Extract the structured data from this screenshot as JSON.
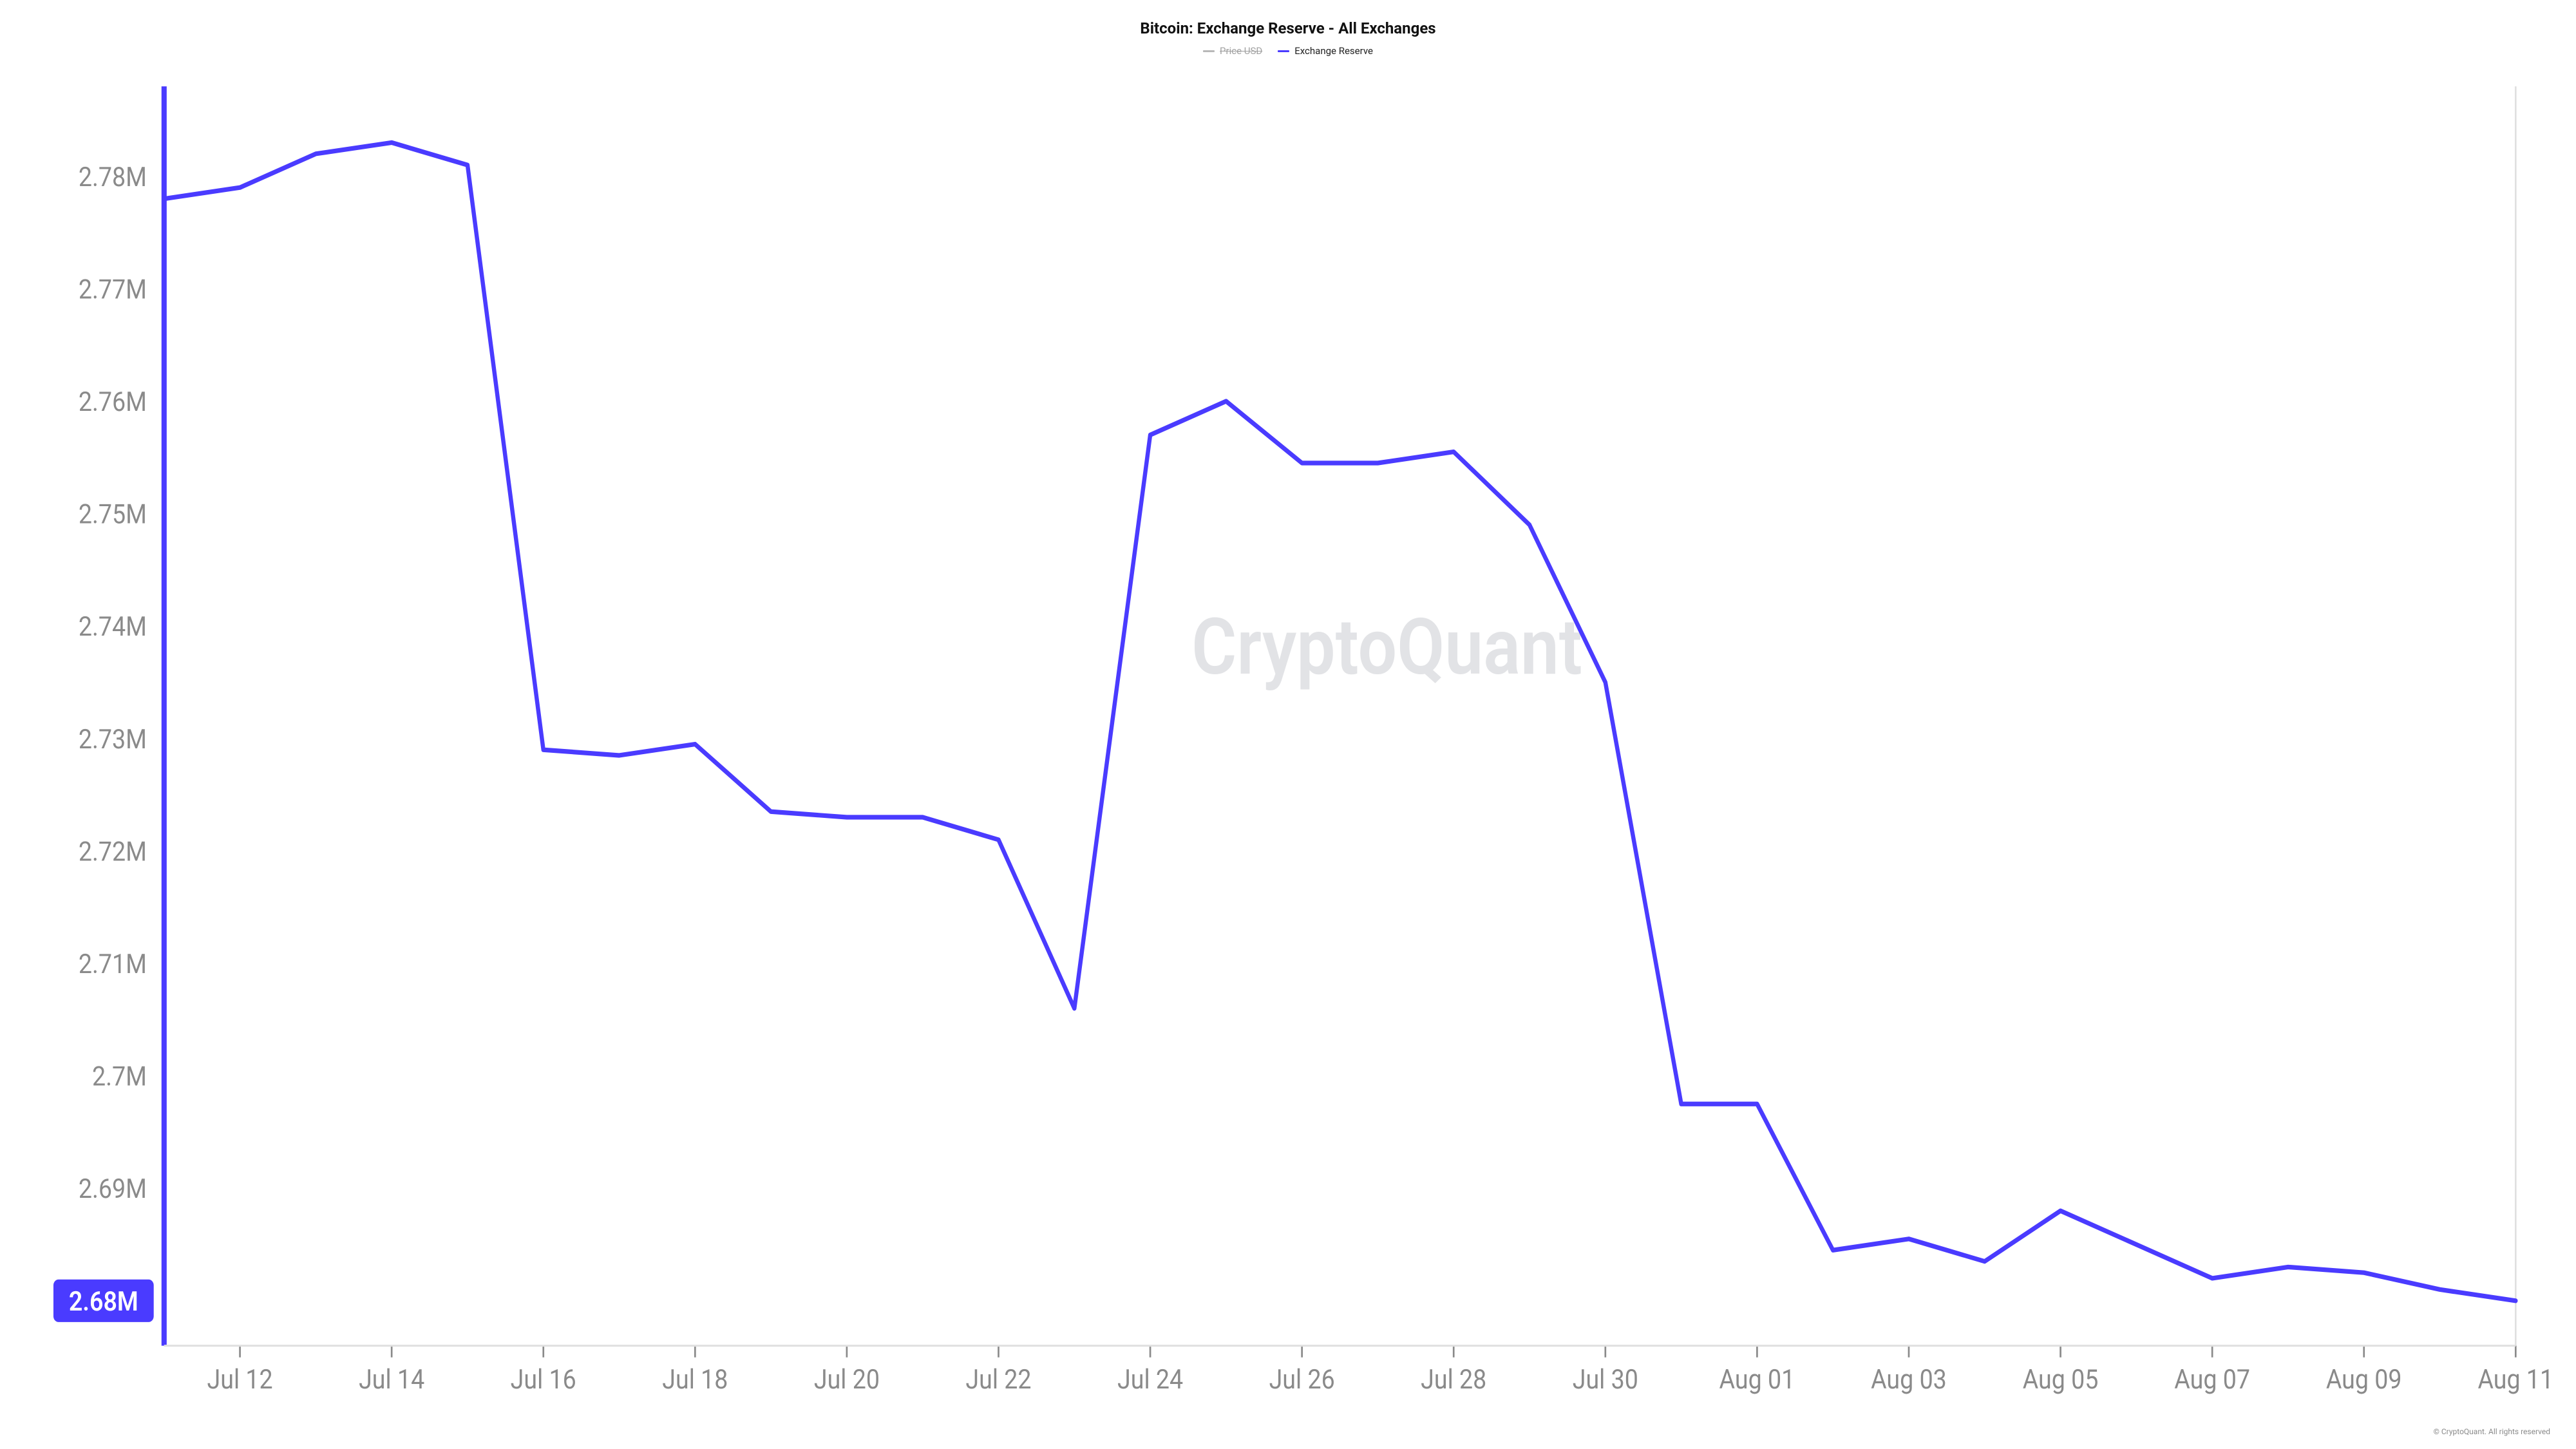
{
  "chart": {
    "type": "line",
    "title": "Bitcoin: Exchange Reserve - All Exchanges",
    "watermark": "CryptoQuant",
    "copyright": "© CryptoQuant. All rights reserved",
    "background_color": "#ffffff",
    "title_fontsize": 24,
    "axis_label_fontsize": 14,
    "axis_label_color": "#8a8a8a",
    "plot_border_color": "#e0e0e0",
    "y_axis_line_color": "#4a3bff",
    "y_axis_line_width": 3,
    "legend": [
      {
        "label": "Price USD",
        "color": "#b8b8b8",
        "disabled": true
      },
      {
        "label": "Exchange Reserve",
        "color": "#4a3bff",
        "disabled": false
      }
    ],
    "y_axis": {
      "min": 2.676,
      "max": 2.788,
      "ticks": [
        {
          "v": 2.68,
          "label": "2.68M",
          "highlight": true
        },
        {
          "v": 2.69,
          "label": "2.69M",
          "highlight": false
        },
        {
          "v": 2.7,
          "label": "2.7M",
          "highlight": false
        },
        {
          "v": 2.71,
          "label": "2.71M",
          "highlight": false
        },
        {
          "v": 2.72,
          "label": "2.72M",
          "highlight": false
        },
        {
          "v": 2.73,
          "label": "2.73M",
          "highlight": false
        },
        {
          "v": 2.74,
          "label": "2.74M",
          "highlight": false
        },
        {
          "v": 2.75,
          "label": "2.75M",
          "highlight": false
        },
        {
          "v": 2.76,
          "label": "2.76M",
          "highlight": false
        },
        {
          "v": 2.77,
          "label": "2.77M",
          "highlight": false
        },
        {
          "v": 2.78,
          "label": "2.78M",
          "highlight": false
        }
      ],
      "highlight_fill": "#4a3bff"
    },
    "x_axis": {
      "min": 0,
      "max": 31,
      "ticks": [
        {
          "v": 1,
          "label": "Jul 12"
        },
        {
          "v": 3,
          "label": "Jul 14"
        },
        {
          "v": 5,
          "label": "Jul 16"
        },
        {
          "v": 7,
          "label": "Jul 18"
        },
        {
          "v": 9,
          "label": "Jul 20"
        },
        {
          "v": 11,
          "label": "Jul 22"
        },
        {
          "v": 13,
          "label": "Jul 24"
        },
        {
          "v": 15,
          "label": "Jul 26"
        },
        {
          "v": 17,
          "label": "Jul 28"
        },
        {
          "v": 19,
          "label": "Jul 30"
        },
        {
          "v": 21,
          "label": "Aug 01"
        },
        {
          "v": 23,
          "label": "Aug 03"
        },
        {
          "v": 25,
          "label": "Aug 05"
        },
        {
          "v": 27,
          "label": "Aug 07"
        },
        {
          "v": 29,
          "label": "Aug 09"
        },
        {
          "v": 31,
          "label": "Aug 11"
        }
      ]
    },
    "series": [
      {
        "name": "Exchange Reserve",
        "color": "#4a3bff",
        "line_width": 2.4,
        "data": [
          {
            "x": 0,
            "y": 2.778
          },
          {
            "x": 1,
            "y": 2.779
          },
          {
            "x": 2,
            "y": 2.782
          },
          {
            "x": 3,
            "y": 2.783
          },
          {
            "x": 4,
            "y": 2.781
          },
          {
            "x": 5,
            "y": 2.729
          },
          {
            "x": 6,
            "y": 2.7285
          },
          {
            "x": 7,
            "y": 2.7295
          },
          {
            "x": 8,
            "y": 2.7235
          },
          {
            "x": 9,
            "y": 2.723
          },
          {
            "x": 10,
            "y": 2.723
          },
          {
            "x": 11,
            "y": 2.721
          },
          {
            "x": 12,
            "y": 2.706
          },
          {
            "x": 13,
            "y": 2.757
          },
          {
            "x": 14,
            "y": 2.76
          },
          {
            "x": 15,
            "y": 2.7545
          },
          {
            "x": 16,
            "y": 2.7545
          },
          {
            "x": 17,
            "y": 2.7555
          },
          {
            "x": 18,
            "y": 2.749
          },
          {
            "x": 19,
            "y": 2.735
          },
          {
            "x": 20,
            "y": 2.6975
          },
          {
            "x": 21,
            "y": 2.6975
          },
          {
            "x": 22,
            "y": 2.6845
          },
          {
            "x": 23,
            "y": 2.6855
          },
          {
            "x": 24,
            "y": 2.6835
          },
          {
            "x": 25,
            "y": 2.688
          },
          {
            "x": 26,
            "y": 2.685
          },
          {
            "x": 27,
            "y": 2.682
          },
          {
            "x": 28,
            "y": 2.683
          },
          {
            "x": 29,
            "y": 2.6825
          },
          {
            "x": 30,
            "y": 2.681
          },
          {
            "x": 31,
            "y": 2.68
          }
        ]
      }
    ]
  }
}
